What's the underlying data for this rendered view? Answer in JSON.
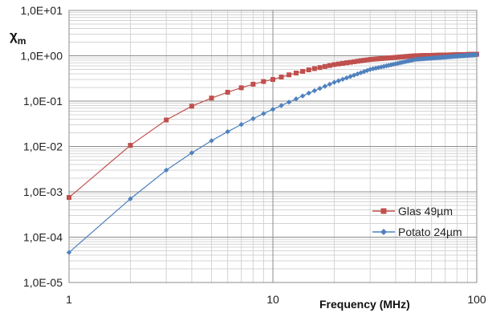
{
  "chart_data": {
    "type": "line",
    "title": "",
    "xlabel": "Frequency (MHz)",
    "ylabel": "χ",
    "ylabel_sub": "m",
    "x_scale": "log",
    "y_scale": "log",
    "xlim": [
      1,
      100
    ],
    "ylim": [
      1e-05,
      10
    ],
    "x_ticks": [
      "1",
      "10",
      "100"
    ],
    "y_ticks": [
      "1,0E-05",
      "1,0E-04",
      "1,0E-03",
      "1,0E-02",
      "1,0E-01",
      "1,0E+00",
      "1,0E+01"
    ],
    "grid": true,
    "legend_position": "bottom-right",
    "series": [
      {
        "name": "Glas 49µm",
        "color": "#c0504d",
        "marker": "square",
        "x": [
          1,
          1.2,
          1.4,
          1.6,
          1.8,
          2,
          2.2,
          2.4,
          2.6,
          2.8,
          3,
          3.2,
          3.4,
          3.6,
          3.8,
          4,
          4.5,
          5,
          5.5,
          6,
          7,
          8,
          9,
          10,
          12,
          15,
          20,
          30,
          50,
          100
        ],
        "values": [
          0.00075,
          0.00148,
          0.0027,
          0.0046,
          0.0072,
          0.0106,
          0.0148,
          0.0198,
          0.0254,
          0.0316,
          0.0384,
          0.0456,
          0.0531,
          0.061,
          0.069,
          0.0772,
          0.0975,
          0.117,
          0.137,
          0.157,
          0.197,
          0.236,
          0.271,
          0.3,
          0.38,
          0.49,
          0.64,
          0.83,
          1.0,
          1.08
        ]
      },
      {
        "name": "Potato 24µm",
        "color": "#4f81bd",
        "marker": "diamond",
        "x": [
          1,
          1.2,
          1.4,
          1.6,
          1.8,
          2,
          2.2,
          2.4,
          2.6,
          2.8,
          3,
          3.2,
          3.4,
          3.6,
          3.8,
          4,
          4.5,
          5,
          5.5,
          6,
          7,
          8,
          9,
          10,
          12,
          15,
          20,
          30,
          50,
          100
        ],
        "values": [
          4.6e-05,
          9.5e-05,
          0.00017,
          0.00029,
          0.00046,
          0.0007,
          0.001,
          0.00137,
          0.00183,
          0.00237,
          0.003,
          0.0037,
          0.0045,
          0.0053,
          0.0062,
          0.0072,
          0.0101,
          0.0134,
          0.0171,
          0.0212,
          0.0305,
          0.041,
          0.053,
          0.066,
          0.095,
          0.15,
          0.26,
          0.5,
          0.83,
          1.06
        ]
      }
    ]
  }
}
